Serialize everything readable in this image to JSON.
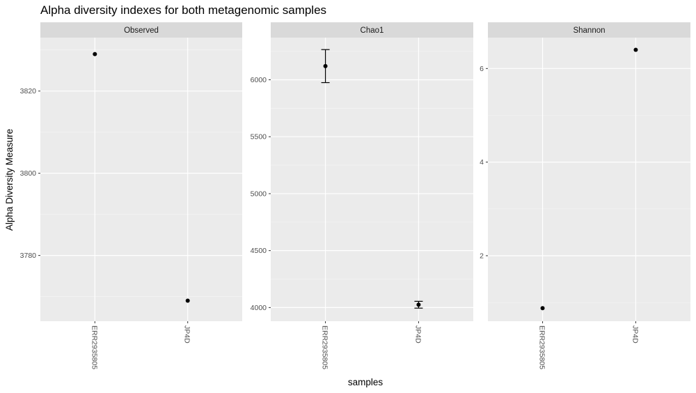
{
  "chart_data": {
    "type": "scatter",
    "title": "Alpha diversity indexes for both metagenomic samples",
    "xlabel": "samples",
    "ylabel": "Alpha Diversity Measure",
    "categories": [
      "ERR2935805",
      "JP4D"
    ],
    "grid": true,
    "legend": "none",
    "panels": [
      {
        "name": "Observed",
        "ylim": [
          3764,
          3833
        ],
        "yticks": [
          3780,
          3800,
          3820
        ],
        "values": [
          3829,
          3769
        ],
        "errors": null
      },
      {
        "name": "Chao1",
        "ylim": [
          3880,
          6370
        ],
        "yticks": [
          4000,
          4500,
          5000,
          5500,
          6000
        ],
        "values": [
          6120,
          4025
        ],
        "errors": [
          [
            5975,
            6265
          ],
          [
            3995,
            4055
          ]
        ]
      },
      {
        "name": "Shannon",
        "ylim": [
          0.6,
          6.66
        ],
        "yticks": [
          2,
          4,
          6
        ],
        "values": [
          0.88,
          6.4
        ],
        "errors": null
      }
    ]
  },
  "colors": {
    "panel_background": "#ebebeb",
    "strip_background": "#d9d9d9",
    "grid_major": "#ffffff",
    "point": "#000000"
  }
}
